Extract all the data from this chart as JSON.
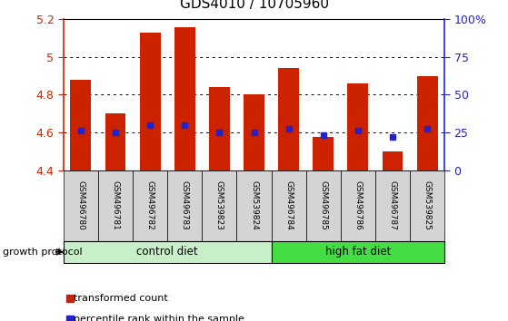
{
  "title": "GDS4010 / 10705960",
  "samples": [
    "GSM496780",
    "GSM496781",
    "GSM496782",
    "GSM496783",
    "GSM539823",
    "GSM539824",
    "GSM496784",
    "GSM496785",
    "GSM496786",
    "GSM496787",
    "GSM539825"
  ],
  "transformed_count": [
    4.88,
    4.7,
    5.13,
    5.16,
    4.84,
    4.8,
    4.94,
    4.575,
    4.86,
    4.5,
    4.9
  ],
  "percentile_rank_val": [
    4.61,
    4.6,
    4.64,
    4.64,
    4.6,
    4.6,
    4.62,
    4.585,
    4.61,
    4.575,
    4.62
  ],
  "bar_bottom": 4.4,
  "ylim_left": [
    4.4,
    5.2
  ],
  "ylim_right": [
    0,
    100
  ],
  "yticks_left": [
    4.4,
    4.6,
    4.8,
    5.0,
    5.2
  ],
  "yticks_right": [
    0,
    25,
    50,
    75,
    100
  ],
  "ytick_labels_left": [
    "4.4",
    "4.6",
    "4.8",
    "5",
    "5.2"
  ],
  "ytick_labels_right": [
    "0",
    "25",
    "50",
    "75",
    "100%"
  ],
  "groups": [
    {
      "label": "control diet",
      "start": 0,
      "end": 6,
      "color": "#C8F0C8"
    },
    {
      "label": "high fat diet",
      "start": 6,
      "end": 11,
      "color": "#44DD44"
    }
  ],
  "growth_protocol_label": "growth protocol",
  "bar_color": "#CC2200",
  "percentile_color": "#2222CC",
  "legend_items": [
    {
      "color": "#CC2200",
      "label": "transformed count"
    },
    {
      "color": "#2222CC",
      "label": "percentile rank within the sample"
    }
  ]
}
